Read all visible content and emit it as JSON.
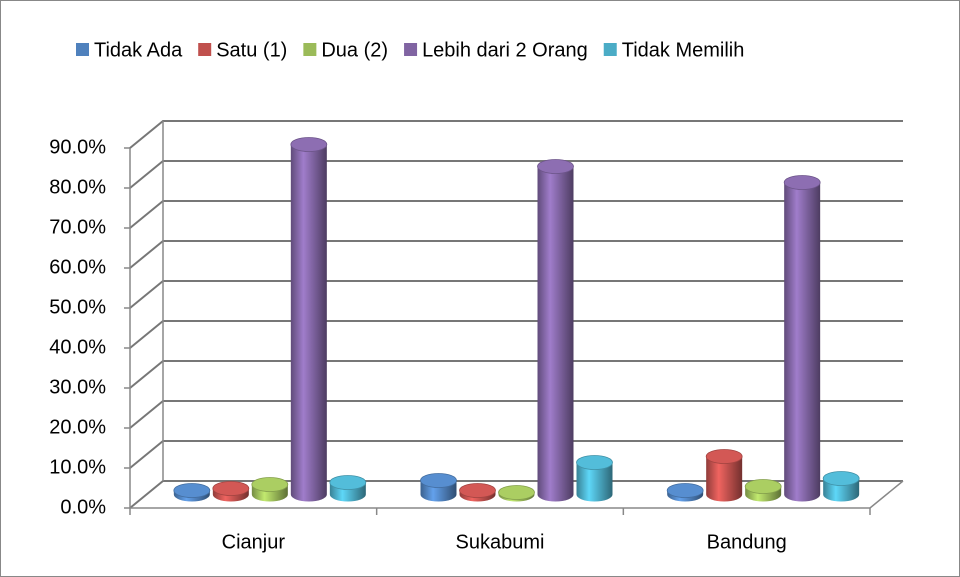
{
  "chart_data": {
    "type": "bar3d",
    "categories": [
      "Cianjur",
      "Sukabumi",
      "Bandung"
    ],
    "series": [
      {
        "name": "Tidak Ada",
        "color": "#4f81bd",
        "values": [
          1,
          3.5,
          1
        ]
      },
      {
        "name": "Satu (1)",
        "color": "#c0504d",
        "values": [
          1.5,
          1,
          9.5
        ]
      },
      {
        "name": "Dua (2)",
        "color": "#9bbb59",
        "values": [
          2.5,
          0.5,
          2
        ]
      },
      {
        "name": "Lebih dari 2 Orang",
        "color": "#8064a2",
        "values": [
          87.5,
          82,
          78
        ]
      },
      {
        "name": "Tidak Memilih",
        "color": "#4bacc6",
        "values": [
          3,
          8,
          4
        ]
      }
    ],
    "ylim": [
      0,
      90
    ],
    "yticks": [
      {
        "value": 0,
        "label": "0.0%"
      },
      {
        "value": 10,
        "label": "10.0%"
      },
      {
        "value": 20,
        "label": "20.0%"
      },
      {
        "value": 30,
        "label": "30.0%"
      },
      {
        "value": 40,
        "label": "40.0%"
      },
      {
        "value": 50,
        "label": "50.0%"
      },
      {
        "value": 60,
        "label": "60.0%"
      },
      {
        "value": 70,
        "label": "70.0%"
      },
      {
        "value": 80,
        "label": "80.0%"
      },
      {
        "value": 90,
        "label": "90.0%"
      }
    ],
    "grid": true,
    "legend": "top"
  }
}
